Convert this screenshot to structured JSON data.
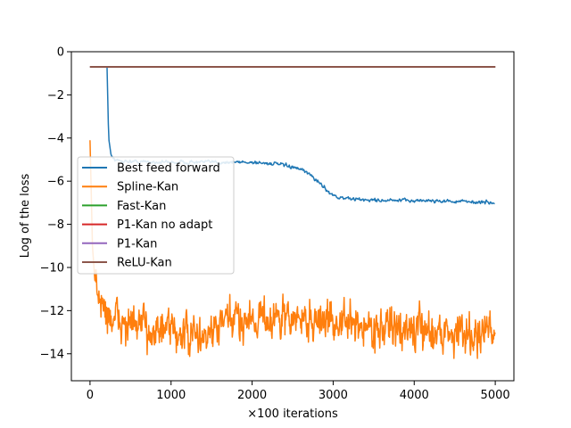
{
  "chart_data": {
    "type": "line",
    "title": "",
    "xlabel": "×100 iterations",
    "ylabel": "Log of the loss",
    "xlim": [
      -230,
      5230
    ],
    "ylim": [
      -15.25,
      0
    ],
    "xticks": [
      0,
      1000,
      2000,
      3000,
      4000,
      5000
    ],
    "yticks": [
      0,
      -2,
      -4,
      -6,
      -8,
      -10,
      -12,
      -14
    ],
    "xtick_labels": [
      "0",
      "1000",
      "2000",
      "3000",
      "4000",
      "5000"
    ],
    "ytick_labels": [
      "0",
      "−2",
      "−4",
      "−6",
      "−8",
      "−10",
      "−12",
      "−14"
    ],
    "grid": false,
    "legend_position": "center-left",
    "series": [
      {
        "name": "Best feed forward",
        "color": "#1f77b4",
        "noise": 0.07,
        "points": [
          [
            210,
            -0.7
          ],
          [
            230,
            -4.0
          ],
          [
            260,
            -4.8
          ],
          [
            320,
            -5.05
          ],
          [
            600,
            -5.1
          ],
          [
            1000,
            -5.12
          ],
          [
            1500,
            -5.12
          ],
          [
            2000,
            -5.12
          ],
          [
            2300,
            -5.2
          ],
          [
            2500,
            -5.35
          ],
          [
            2650,
            -5.55
          ],
          [
            2750,
            -5.8
          ],
          [
            2850,
            -6.15
          ],
          [
            2950,
            -6.5
          ],
          [
            3050,
            -6.75
          ],
          [
            3300,
            -6.85
          ],
          [
            3700,
            -6.9
          ],
          [
            4200,
            -6.9
          ],
          [
            4600,
            -6.95
          ],
          [
            5000,
            -7.0
          ]
        ]
      },
      {
        "name": "Spline-Kan",
        "color": "#ff7f0e",
        "noise": 0.75,
        "points": [
          [
            0,
            -4.1
          ],
          [
            15,
            -6.5
          ],
          [
            30,
            -9.0
          ],
          [
            60,
            -10.6
          ],
          [
            120,
            -11.6
          ],
          [
            250,
            -12.3
          ],
          [
            500,
            -12.7
          ],
          [
            1000,
            -13.0
          ],
          [
            1400,
            -13.3
          ],
          [
            1700,
            -12.5
          ],
          [
            2000,
            -12.3
          ],
          [
            2500,
            -12.4
          ],
          [
            3000,
            -12.5
          ],
          [
            3500,
            -12.8
          ],
          [
            4000,
            -12.9
          ],
          [
            4500,
            -13.0
          ],
          [
            5000,
            -13.0
          ]
        ]
      },
      {
        "name": "Fast-Kan",
        "color": "#2ca02c",
        "noise": 0,
        "points": [
          [
            0,
            -0.7
          ],
          [
            5000,
            -0.7
          ]
        ]
      },
      {
        "name": "P1-Kan no adapt",
        "color": "#d62728",
        "noise": 0,
        "points": [
          [
            0,
            -0.7
          ],
          [
            5000,
            -0.7
          ]
        ]
      },
      {
        "name": "P1-Kan",
        "color": "#9467bd",
        "noise": 0,
        "points": [
          [
            0,
            -0.7
          ],
          [
            5000,
            -0.7
          ]
        ]
      },
      {
        "name": "ReLU-Kan",
        "color": "#8c564b",
        "noise": 0,
        "points": [
          [
            0,
            -0.7
          ],
          [
            5000,
            -0.7
          ]
        ]
      }
    ]
  }
}
